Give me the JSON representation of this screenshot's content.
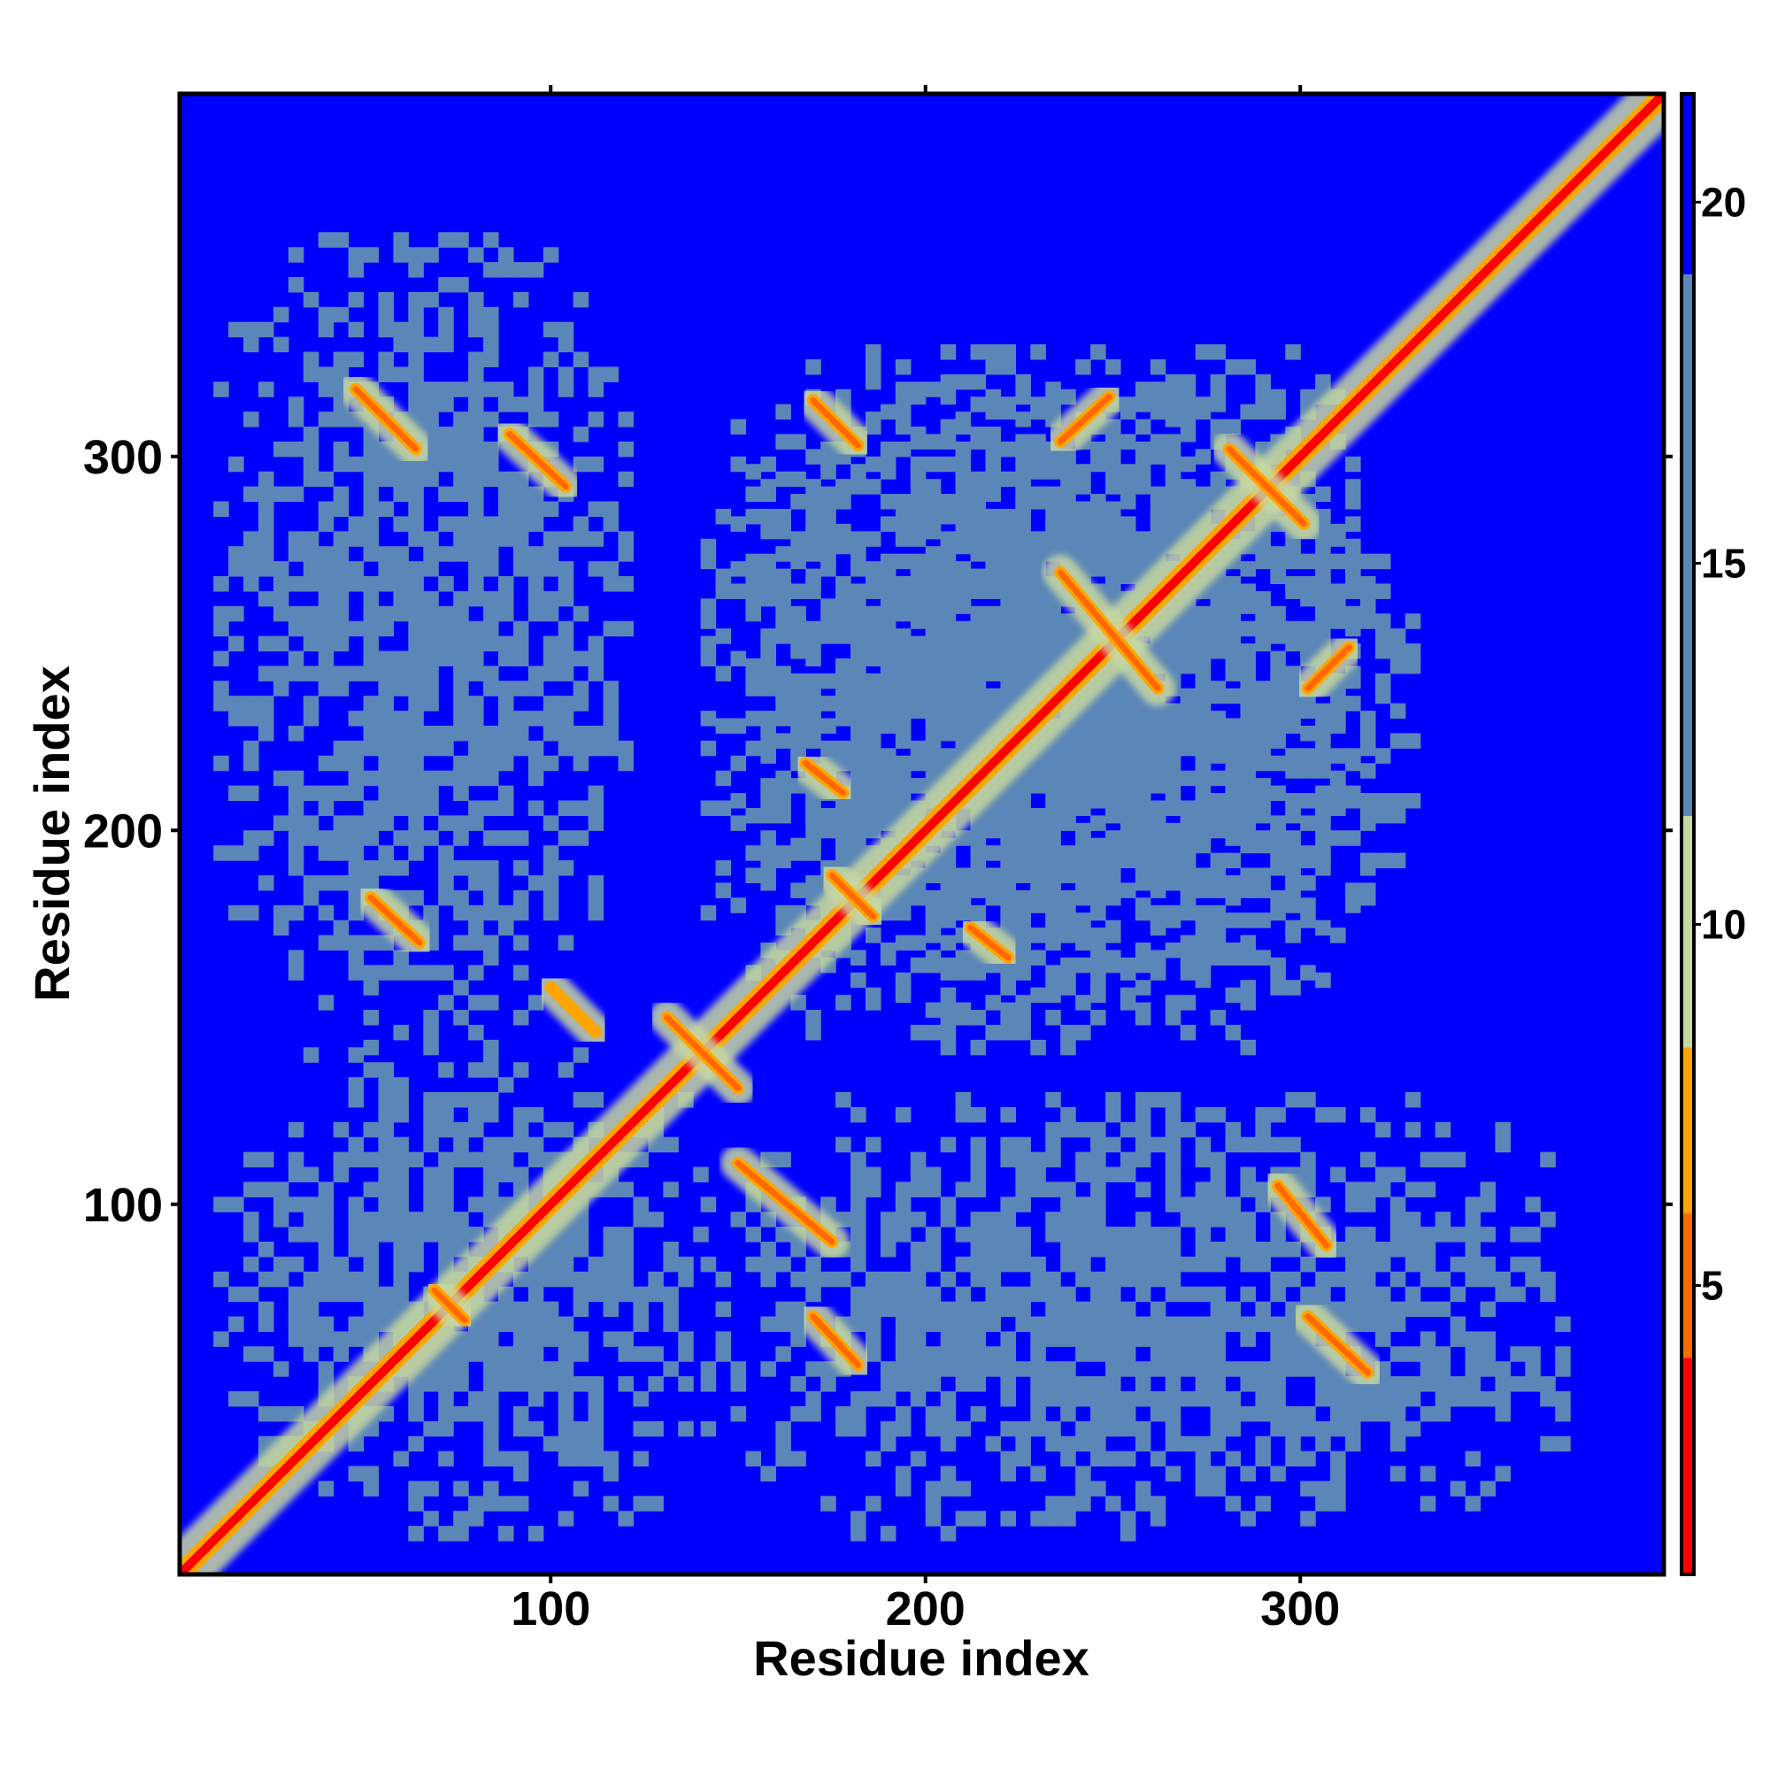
{
  "chart_data": {
    "type": "heatmap",
    "title": "",
    "xlabel": "Residue index",
    "ylabel": "Residue index",
    "n_residues": 397,
    "xlim": [
      1,
      397
    ],
    "ylim": [
      1,
      397
    ],
    "x_ticks": [
      100,
      200,
      300
    ],
    "y_ticks": [
      100,
      200,
      300
    ],
    "x_tick_labels": [
      "100",
      "200",
      "300"
    ],
    "y_tick_labels": [
      "100",
      "200",
      "300"
    ],
    "colorbar": {
      "range": [
        1,
        21.5
      ],
      "ticks": [
        5,
        10,
        15,
        20
      ],
      "tick_labels": [
        "5",
        "10",
        "15",
        "20"
      ],
      "bands": [
        {
          "from": 1,
          "to": 4,
          "color": "#ff0000"
        },
        {
          "from": 4,
          "to": 6,
          "color": "#ff6a00"
        },
        {
          "from": 6,
          "to": 8.3,
          "color": "#ffa500"
        },
        {
          "from": 8.3,
          "to": 11.5,
          "color": "#c8d8a0"
        },
        {
          "from": 11.5,
          "to": 19,
          "color": "#5b86b8"
        },
        {
          "from": 19,
          "to": 21.5,
          "color": "#0000ff"
        }
      ]
    },
    "contact_segments": [
      {
        "from": [
          1,
          1
        ],
        "to": [
          397,
          397
        ],
        "value": 2
      },
      {
        "from": [
          48,
          318
        ],
        "to": [
          64,
          302
        ],
        "value": 5
      },
      {
        "from": [
          89,
          306
        ],
        "to": [
          104,
          292
        ],
        "value": 5
      },
      {
        "from": [
          52,
          182
        ],
        "to": [
          65,
          170
        ],
        "value": 5
      },
      {
        "from": [
          170,
          315
        ],
        "to": [
          182,
          303
        ],
        "value": 5
      },
      {
        "from": [
          236,
          304
        ],
        "to": [
          249,
          316
        ],
        "value": 5
      },
      {
        "from": [
          236,
          269
        ],
        "to": [
          262,
          238
        ],
        "value": 5
      },
      {
        "from": [
          281,
          302
        ],
        "to": [
          301,
          282
        ],
        "value": 5
      },
      {
        "from": [
          302,
          238
        ],
        "to": [
          313,
          249
        ],
        "value": 5
      },
      {
        "from": [
          175,
          188
        ],
        "to": [
          186,
          177
        ],
        "value": 5
      },
      {
        "from": [
          168,
          218
        ],
        "to": [
          178,
          210
        ],
        "value": 5
      },
      {
        "from": [
          212,
          174
        ],
        "to": [
          222,
          166
        ],
        "value": 5
      },
      {
        "from": [
          100,
          158
        ],
        "to": [
          112,
          146
        ],
        "value": 7
      },
      {
        "from": [
          131,
          150
        ],
        "to": [
          150,
          131
        ],
        "value": 5
      },
      {
        "from": [
          150,
          111
        ],
        "to": [
          175,
          90
        ],
        "value": 5
      },
      {
        "from": [
          69,
          77
        ],
        "to": [
          77,
          69
        ],
        "value": 5
      },
      {
        "from": [
          170,
          70
        ],
        "to": [
          182,
          57
        ],
        "value": 5
      },
      {
        "from": [
          294,
          105
        ],
        "to": [
          307,
          89
        ],
        "value": 5
      },
      {
        "from": [
          302,
          70
        ],
        "to": [
          318,
          55
        ],
        "value": 5
      }
    ],
    "structured_regions": [
      {
        "x": [
          10,
          140
        ],
        "y": [
          10,
          140
        ],
        "value": 14
      },
      {
        "x": [
          140,
          320
        ],
        "y": [
          140,
          320
        ],
        "value": 14
      },
      {
        "x": [
          10,
          120
        ],
        "y": [
          140,
          360
        ],
        "value": 15
      },
      {
        "x": [
          140,
          370
        ],
        "y": [
          10,
          130
        ],
        "value": 15
      },
      {
        "x": [
          140,
          330
        ],
        "y": [
          150,
          330
        ],
        "value": 14
      }
    ]
  }
}
